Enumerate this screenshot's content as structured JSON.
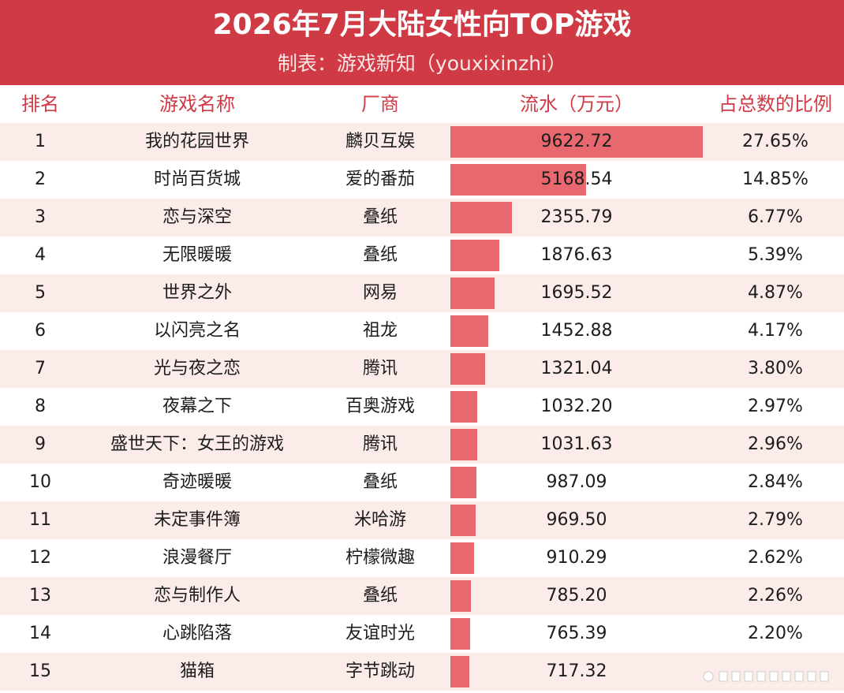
{
  "header": {
    "title": "2026年7月大陆女性向TOP游戏",
    "subtitle": "制表：游戏新知（youxixinzhi）"
  },
  "table": {
    "columns": [
      "排名",
      "游戏名称",
      "厂商",
      "流水（万元）",
      "占总数的比例"
    ]
  },
  "colors": {
    "banner": "#cf3a45",
    "bar": "#e8686f",
    "row_alt": "#fbecea"
  },
  "chart_data": {
    "type": "bar",
    "title": "2026年7月大陆女性向TOP游戏",
    "subtitle": "制表：游戏新知（youxixinzhi）",
    "ylabel": "流水（万元）",
    "rows": [
      {
        "rank": "1",
        "name": "我的花园世界",
        "vendor": "麟贝互娱",
        "revenue": 9622.72,
        "revenue_label": "9622.72",
        "share": "27.65%"
      },
      {
        "rank": "2",
        "name": "时尚百货城",
        "vendor": "爱的番茄",
        "revenue": 5168.54,
        "revenue_label": "5168.54",
        "share": "14.85%"
      },
      {
        "rank": "3",
        "name": "恋与深空",
        "vendor": "叠纸",
        "revenue": 2355.79,
        "revenue_label": "2355.79",
        "share": "6.77%"
      },
      {
        "rank": "4",
        "name": "无限暖暖",
        "vendor": "叠纸",
        "revenue": 1876.63,
        "revenue_label": "1876.63",
        "share": "5.39%"
      },
      {
        "rank": "5",
        "name": "世界之外",
        "vendor": "网易",
        "revenue": 1695.52,
        "revenue_label": "1695.52",
        "share": "4.87%"
      },
      {
        "rank": "6",
        "name": "以闪亮之名",
        "vendor": "祖龙",
        "revenue": 1452.88,
        "revenue_label": "1452.88",
        "share": "4.17%"
      },
      {
        "rank": "7",
        "name": "光与夜之恋",
        "vendor": "腾讯",
        "revenue": 1321.04,
        "revenue_label": "1321.04",
        "share": "3.80%"
      },
      {
        "rank": "8",
        "name": "夜幕之下",
        "vendor": "百奥游戏",
        "revenue": 1032.2,
        "revenue_label": "1032.20",
        "share": "2.97%"
      },
      {
        "rank": "9",
        "name": "盛世天下：女王的游戏",
        "vendor": "腾讯",
        "revenue": 1031.63,
        "revenue_label": "1031.63",
        "share": "2.96%"
      },
      {
        "rank": "10",
        "name": "奇迹暖暖",
        "vendor": "叠纸",
        "revenue": 987.09,
        "revenue_label": "987.09",
        "share": "2.84%"
      },
      {
        "rank": "11",
        "name": "未定事件簿",
        "vendor": "米哈游",
        "revenue": 969.5,
        "revenue_label": "969.50",
        "share": "2.79%"
      },
      {
        "rank": "12",
        "name": "浪漫餐厅",
        "vendor": "柠檬微趣",
        "revenue": 910.29,
        "revenue_label": "910.29",
        "share": "2.62%"
      },
      {
        "rank": "13",
        "name": "恋与制作人",
        "vendor": "叠纸",
        "revenue": 785.2,
        "revenue_label": "785.20",
        "share": "2.26%"
      },
      {
        "rank": "14",
        "name": "心跳陷落",
        "vendor": "友谊时光",
        "revenue": 765.39,
        "revenue_label": "765.39",
        "share": "2.20%"
      },
      {
        "rank": "15",
        "name": "猫箱",
        "vendor": "字节跳动",
        "revenue": 717.32,
        "revenue_label": "717.32",
        "share": ""
      }
    ],
    "xlim": [
      0,
      9622.72
    ]
  }
}
